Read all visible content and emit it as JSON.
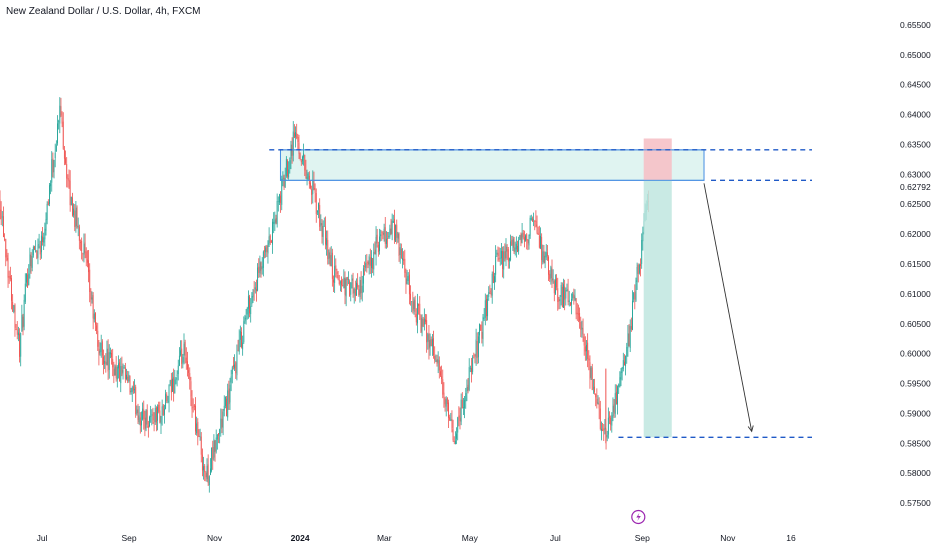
{
  "header": {
    "title": "New Zealand Dollar / U.S. Dollar, 4h, FXCM"
  },
  "colors": {
    "up": "#26a69a",
    "down": "#ef5350",
    "zone_fill": "#e0f4f1",
    "zone_border": "#4a90e2",
    "dashed_line": "#1f5ac7",
    "target_fill": "#bfe6df",
    "stop_fill": "#f6c1c7",
    "arrow": "#333333",
    "event_icon": "#9c27b0"
  },
  "chart_data": {
    "type": "candlestick",
    "symbol": "NZDUSD",
    "timeframe": "4h",
    "x_ticks": [
      "Jul",
      "Sep",
      "Nov",
      "2024",
      "Mar",
      "May",
      "Jul",
      "Sep",
      "Nov",
      "16"
    ],
    "y_ticks": [
      "0.65500",
      "0.65000",
      "0.64500",
      "0.64000",
      "0.63500",
      "0.63000",
      "0.62500",
      "0.62000",
      "0.61500",
      "0.61000",
      "0.60500",
      "0.60000",
      "0.59500",
      "0.59000",
      "0.58500",
      "0.58000",
      "0.57500"
    ],
    "ylim": [
      0.5725,
      0.6575
    ],
    "current_price_label": "0.62792",
    "price_path": [
      {
        "d": "2023-06-01",
        "p": 0.626
      },
      {
        "d": "2023-06-08",
        "p": 0.612
      },
      {
        "d": "2023-06-15",
        "p": 0.601
      },
      {
        "d": "2023-06-22",
        "p": 0.616
      },
      {
        "d": "2023-07-01",
        "p": 0.619
      },
      {
        "d": "2023-07-14",
        "p": 0.641
      },
      {
        "d": "2023-07-20",
        "p": 0.627
      },
      {
        "d": "2023-07-31",
        "p": 0.617
      },
      {
        "d": "2023-08-10",
        "p": 0.601
      },
      {
        "d": "2023-08-31",
        "p": 0.595
      },
      {
        "d": "2023-09-10",
        "p": 0.589
      },
      {
        "d": "2023-09-25",
        "p": 0.59
      },
      {
        "d": "2023-10-10",
        "p": 0.6
      },
      {
        "d": "2023-10-26",
        "p": 0.579
      },
      {
        "d": "2023-11-10",
        "p": 0.592
      },
      {
        "d": "2023-11-25",
        "p": 0.608
      },
      {
        "d": "2023-12-10",
        "p": 0.618
      },
      {
        "d": "2023-12-28",
        "p": 0.637
      },
      {
        "d": "2024-01-10",
        "p": 0.627
      },
      {
        "d": "2024-01-25",
        "p": 0.613
      },
      {
        "d": "2024-02-10",
        "p": 0.61
      },
      {
        "d": "2024-02-25",
        "p": 0.618
      },
      {
        "d": "2024-03-08",
        "p": 0.621
      },
      {
        "d": "2024-03-20",
        "p": 0.609
      },
      {
        "d": "2024-04-05",
        "p": 0.601
      },
      {
        "d": "2024-04-19",
        "p": 0.5855
      },
      {
        "d": "2024-05-05",
        "p": 0.6
      },
      {
        "d": "2024-05-20",
        "p": 0.615
      },
      {
        "d": "2024-06-05",
        "p": 0.618
      },
      {
        "d": "2024-06-15",
        "p": 0.622
      },
      {
        "d": "2024-06-30",
        "p": 0.611
      },
      {
        "d": "2024-07-15",
        "p": 0.608
      },
      {
        "d": "2024-08-05",
        "p": 0.586
      },
      {
        "d": "2024-08-20",
        "p": 0.599
      },
      {
        "d": "2024-08-31",
        "p": 0.617
      },
      {
        "d": "2024-09-06",
        "p": 0.6279
      }
    ],
    "supply_zone": {
      "from": "2023-12-18",
      "to": "2024-10-15",
      "top": 0.6341,
      "bottom": 0.629
    },
    "lines": [
      {
        "price": 0.6341,
        "from": "2023-12-10",
        "to": "2024-12-31"
      },
      {
        "price": 0.629,
        "from": "2024-10-20",
        "to": "2024-12-31"
      },
      {
        "price": 0.586,
        "from": "2024-08-15",
        "to": "2024-12-31"
      }
    ],
    "position": {
      "from": "2024-09-02",
      "to": "2024-09-22",
      "entry": 0.629,
      "stop": 0.636,
      "target": 0.586
    },
    "projection_arrow": {
      "from_date": "2024-10-15",
      "from_price": 0.6285,
      "to_date": "2024-11-18",
      "to_price": 0.587
    }
  }
}
